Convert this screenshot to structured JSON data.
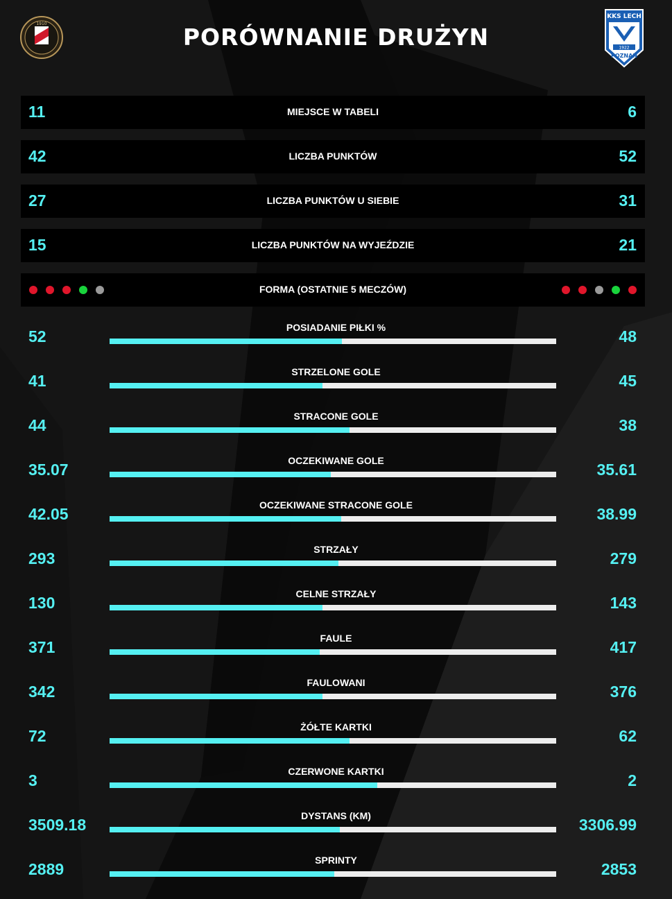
{
  "header": {
    "title": "PORÓWNANIE DRUŻYN",
    "left_logo_text": "1910",
    "right_logo_text_top": "KKS LECH",
    "right_logo_text_year": "1922",
    "right_logo_text_bottom": "POZNAŃ"
  },
  "colors": {
    "accent": "#55f0f2",
    "loss": "#e0162b",
    "win": "#19d43c",
    "draw": "#9a9a9a",
    "bar_track": "#ededed"
  },
  "info_rows": [
    {
      "label": "MIEJSCE W TABELI",
      "left": "11",
      "right": "6"
    },
    {
      "label": "LICZBA PUNKTÓW",
      "left": "42",
      "right": "52"
    },
    {
      "label": "LICZBA PUNKTÓW U SIEBIE",
      "left": "27",
      "right": "31"
    },
    {
      "label": "LICZBA PUNKTÓW NA WYJEŹDZIE",
      "left": "15",
      "right": "21"
    }
  ],
  "form": {
    "label": "FORMA (OSTATNIE 5 MECZÓW)",
    "left": [
      "L",
      "L",
      "L",
      "W",
      "D"
    ],
    "right": [
      "L",
      "L",
      "D",
      "W",
      "L"
    ]
  },
  "stats": [
    {
      "label": "POSIADANIE PIŁKI %",
      "left": "52",
      "right": "48",
      "share": 0.52
    },
    {
      "label": "STRZELONE GOLE",
      "left": "41",
      "right": "45",
      "share": 0.477
    },
    {
      "label": "STRACONE GOLE",
      "left": "44",
      "right": "38",
      "share": 0.537
    },
    {
      "label": "OCZEKIWANE GOLE",
      "left": "35.07",
      "right": "35.61",
      "share": 0.496
    },
    {
      "label": "OCZEKIWANE STRACONE GOLE",
      "left": "42.05",
      "right": "38.99",
      "share": 0.519
    },
    {
      "label": "STRZAŁY",
      "left": "293",
      "right": "279",
      "share": 0.512
    },
    {
      "label": "CELNE STRZAŁY",
      "left": "130",
      "right": "143",
      "share": 0.476
    },
    {
      "label": "FAULE",
      "left": "371",
      "right": "417",
      "share": 0.471
    },
    {
      "label": "FAULOWANI",
      "left": "342",
      "right": "376",
      "share": 0.476
    },
    {
      "label": "ŻÓŁTE KARTKI",
      "left": "72",
      "right": "62",
      "share": 0.537
    },
    {
      "label": "CZERWONE KARTKI",
      "left": "3",
      "right": "2",
      "share": 0.6
    },
    {
      "label": "DYSTANS (KM)",
      "left": "3509.18",
      "right": "3306.99",
      "share": 0.515
    },
    {
      "label": "SPRINTY",
      "left": "2889",
      "right": "2853",
      "share": 0.503
    }
  ]
}
